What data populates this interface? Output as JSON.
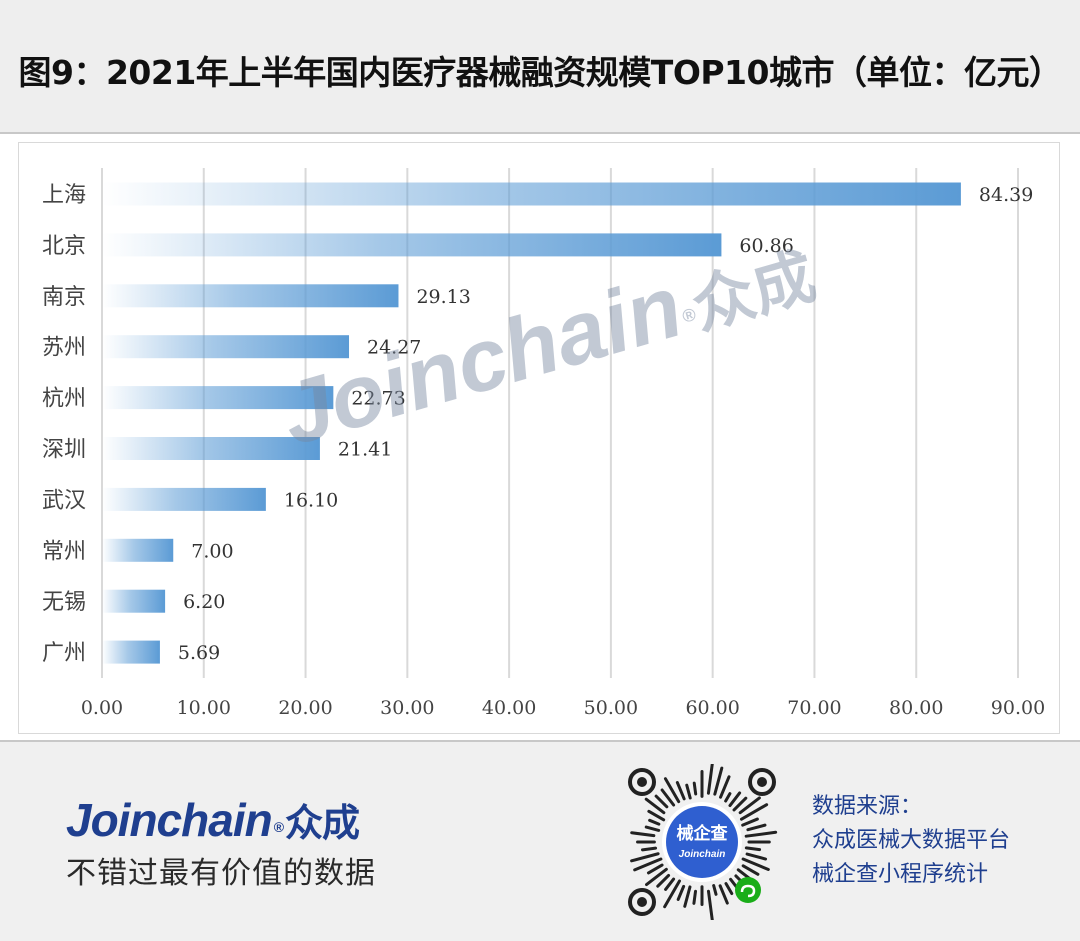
{
  "title": "图9：2021年上半年国内医疗器械融资规模TOP10城市（单位：亿元）",
  "chart_data": {
    "type": "bar",
    "orientation": "horizontal",
    "categories": [
      "上海",
      "北京",
      "南京",
      "苏州",
      "杭州",
      "深圳",
      "武汉",
      "常州",
      "无锡",
      "广州"
    ],
    "values": [
      84.39,
      60.86,
      29.13,
      24.27,
      22.73,
      21.41,
      16.1,
      7.0,
      6.2,
      5.69
    ],
    "value_labels": [
      "84.39",
      "60.86",
      "29.13",
      "24.27",
      "22.73",
      "21.41",
      "16.10",
      "7.00",
      "6.20",
      "5.69"
    ],
    "xlim": [
      0,
      90
    ],
    "x_ticks": [
      "0.00",
      "10.00",
      "20.00",
      "30.00",
      "40.00",
      "50.00",
      "60.00",
      "70.00",
      "80.00",
      "90.00"
    ],
    "grid": "vertical",
    "legend": "none",
    "bar_color": "#5b9bd5"
  },
  "watermark": {
    "text": "Joinchain",
    "symbol": "®",
    "cn": "众成"
  },
  "footer": {
    "brand": "Joinchain",
    "brand_symbol": "®",
    "brand_cn": "众成",
    "slogan": "不错过最有价值的数据",
    "qr_badge_cn": "械企查",
    "qr_badge_en": "Joinchain",
    "source_lines": [
      "数据来源：",
      "众成医械大数据平台",
      "械企查小程序统计"
    ]
  },
  "colors": {
    "brand": "#1f3f8f",
    "bar": "#5b9bd5",
    "grid": "#d9d9d9"
  }
}
